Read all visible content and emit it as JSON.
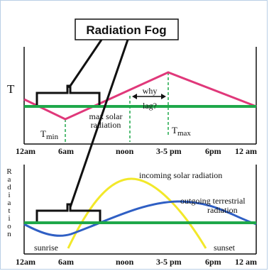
{
  "title": "Radiation Fog",
  "top_panel": {
    "y_label": "T",
    "t_min_base": "T",
    "t_min_sub": "min",
    "t_max_base": "T",
    "t_max_sub": "max",
    "max_solar_line1": "max solar",
    "max_solar_line2": "radiation",
    "why_lag_line1": "why",
    "why_lag_line2": "lag?"
  },
  "top_axis_ticks": [
    "12am",
    "6am",
    "noon",
    "3-5 pm",
    "6pm",
    "12 am"
  ],
  "bottom_panel": {
    "y_label_letters": [
      "R",
      "a",
      "d",
      "i",
      "a",
      "t",
      "i",
      "o",
      "n"
    ],
    "incoming_label": "incoming solar radiation",
    "outgoing_line1": "outgoing terrestrial",
    "outgoing_line2": "radiation",
    "sunrise": "sunrise",
    "sunset": "sunset"
  },
  "bottom_axis_ticks": [
    "12am",
    "6am",
    "noon",
    "3-5 pm",
    "6pm",
    "12 am"
  ],
  "colors": {
    "temperature_curve": "#e0387a",
    "dew_point_line": "#1fa84a",
    "incoming_curve": "#f2e82a",
    "outgoing_curve": "#2f5fc4",
    "annotation_dash": "#1fa84a"
  }
}
